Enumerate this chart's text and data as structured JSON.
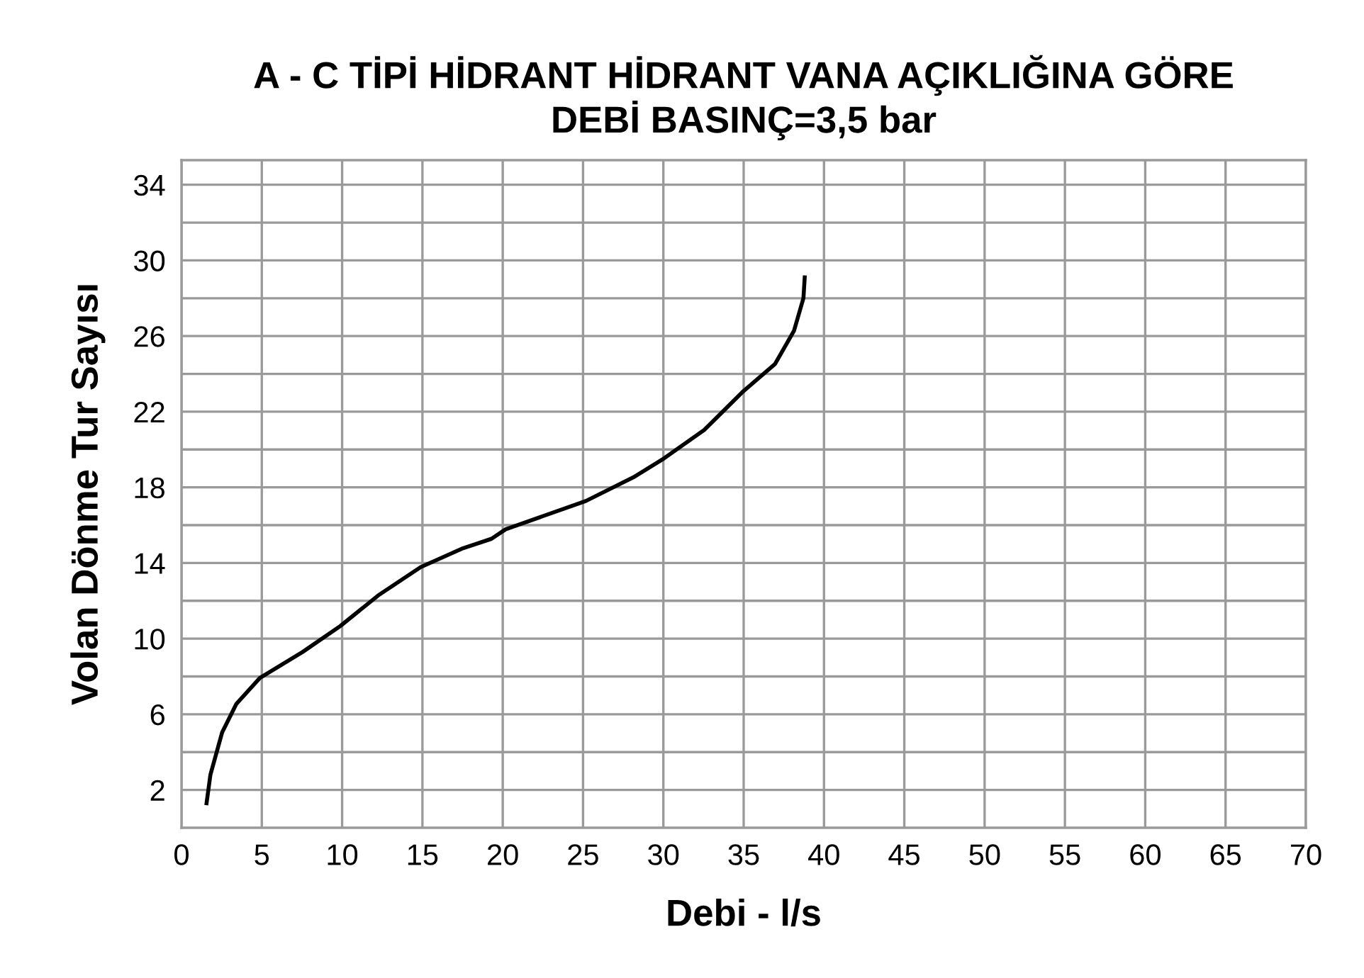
{
  "chart_data": {
    "type": "line",
    "title": "A - C TİPİ HİDRANT HİDRANT VANA AÇIKLIĞINA GÖRE\nDEBİ BASINÇ=3,5 bar",
    "xlabel": "Debi - l/s",
    "ylabel": "Volan Dönme Tur Sayısı",
    "series": [
      {
        "color": "#000000",
        "x": [
          1.56,
          1.8,
          2.53,
          3.41,
          4.88,
          7.53,
          9.88,
          12.24,
          14.89,
          17.53,
          19.3,
          20.18,
          25.18,
          28.13,
          30.04,
          32.54,
          34.9,
          36.95,
          38.13,
          38.72,
          38.8
        ],
        "values": [
          1.3,
          2.8,
          5.04,
          6.54,
          7.92,
          9.29,
          10.66,
          12.28,
          13.78,
          14.78,
          15.28,
          15.78,
          17.28,
          18.53,
          19.53,
          21.03,
          23.02,
          24.52,
          26.27,
          28.0,
          29.1
        ]
      }
    ],
    "xlim": [
      0,
      70
    ],
    "xticks": [
      0,
      5,
      10,
      15,
      20,
      25,
      30,
      35,
      40,
      45,
      50,
      55,
      60,
      65,
      70
    ],
    "ylim": [
      0,
      35.3
    ],
    "yticks": [
      2,
      {
        "value": 4,
        "label": null
      },
      6,
      {
        "value": 8,
        "label": null
      },
      10,
      {
        "value": 12,
        "label": null
      },
      14,
      {
        "value": 16,
        "label": null
      },
      18,
      {
        "value": 20,
        "label": null
      },
      22,
      {
        "value": 24,
        "label": null
      },
      26,
      {
        "value": 28,
        "label": null
      },
      30,
      {
        "value": 32,
        "label": null
      },
      34
    ],
    "grid": true,
    "marker": "none",
    "line_style": "solid"
  }
}
